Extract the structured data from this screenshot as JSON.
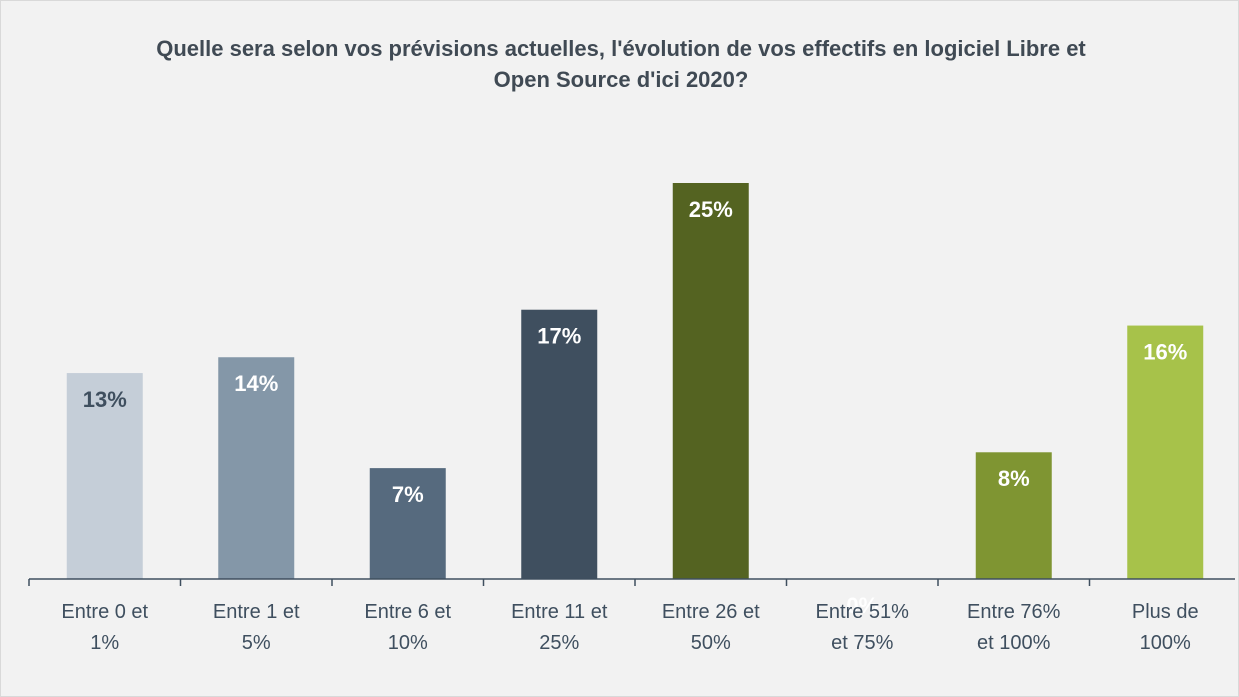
{
  "chart_data": {
    "type": "bar",
    "title": "Quelle sera selon vos prévisions actuelles, l'évolution de vos effectifs en logiciel Libre et Open Source d'ici 2020?",
    "categories": [
      "Entre 0 et 1%",
      "Entre 1 et 5%",
      "Entre 6 et 10%",
      "Entre 11 et 25%",
      "Entre 26 et 50%",
      "Entre 51% et 75%",
      "Entre 76% et 100%",
      "Plus de 100%"
    ],
    "values": [
      13,
      14,
      7,
      17,
      25,
      0,
      8,
      16
    ],
    "value_labels": [
      "13%",
      "14%",
      "7%",
      "17%",
      "25%",
      "0%",
      "8%",
      "16%"
    ],
    "colors": [
      "#c5ced8",
      "#8497a8",
      "#566a7e",
      "#3f4f5f",
      "#546321",
      "#6b7f2a",
      "#7f9532",
      "#a7c24a"
    ],
    "label_colors": [
      "#3f4f5f",
      "#ffffff",
      "#ffffff",
      "#ffffff",
      "#ffffff",
      "#ffffff",
      "#ffffff",
      "#ffffff"
    ],
    "ylim": [
      0,
      25
    ]
  }
}
